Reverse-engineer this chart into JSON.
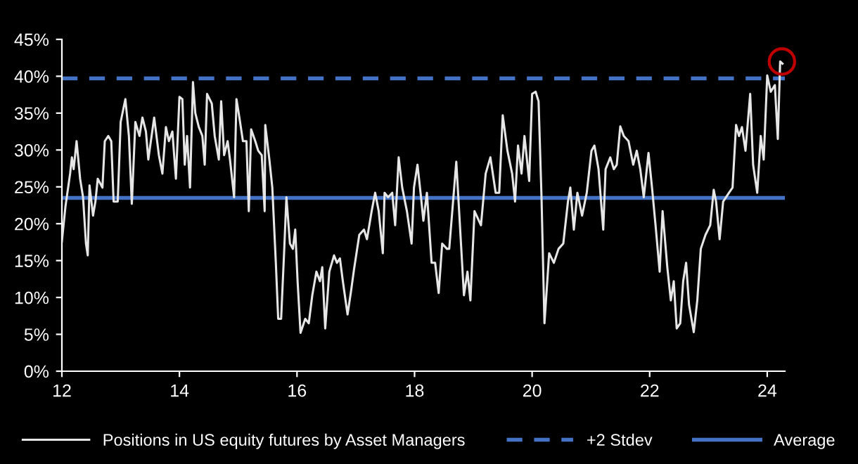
{
  "chart_data": {
    "type": "line",
    "series": [
      {
        "name": "Positions in US equity futures by Asset Managers",
        "color": "#e6e6e6",
        "x": [
          12.0,
          12.06,
          12.14,
          12.17,
          12.2,
          12.25,
          12.31,
          12.36,
          12.41,
          12.44,
          12.47,
          12.53,
          12.57,
          12.61,
          12.69,
          12.73,
          12.79,
          12.84,
          12.88,
          12.95,
          13.0,
          13.08,
          13.14,
          13.19,
          13.25,
          13.32,
          13.37,
          13.43,
          13.47,
          13.57,
          13.65,
          13.71,
          13.77,
          13.82,
          13.88,
          13.94,
          14.0,
          14.05,
          14.09,
          14.13,
          14.18,
          14.23,
          14.27,
          14.33,
          14.39,
          14.43,
          14.47,
          14.55,
          14.6,
          14.67,
          14.71,
          14.76,
          14.82,
          14.86,
          14.93,
          14.97,
          15.02,
          15.08,
          15.14,
          15.18,
          15.22,
          15.29,
          15.34,
          15.4,
          15.45,
          15.46,
          15.53,
          15.58,
          15.64,
          15.68,
          15.73,
          15.78,
          15.82,
          15.88,
          15.93,
          15.97,
          16.01,
          16.06,
          16.14,
          16.2,
          16.26,
          16.33,
          16.39,
          16.43,
          16.48,
          16.55,
          16.63,
          16.68,
          16.73,
          16.78,
          16.86,
          16.92,
          16.97,
          17.06,
          17.14,
          17.19,
          17.27,
          17.33,
          17.39,
          17.46,
          17.49,
          17.55,
          17.62,
          17.67,
          17.73,
          17.79,
          17.87,
          17.95,
          17.99,
          18.05,
          18.11,
          18.15,
          18.21,
          18.29,
          18.35,
          18.41,
          18.47,
          18.55,
          18.59,
          18.71,
          18.79,
          18.84,
          18.9,
          18.95,
          19.02,
          19.13,
          19.21,
          19.29,
          19.38,
          19.44,
          19.5,
          19.58,
          19.66,
          19.71,
          19.76,
          19.82,
          19.87,
          19.95,
          20.0,
          20.06,
          20.11,
          20.16,
          20.21,
          20.29,
          20.37,
          20.45,
          20.53,
          20.61,
          20.65,
          20.71,
          20.77,
          20.85,
          20.93,
          21.01,
          21.06,
          21.13,
          21.21,
          21.25,
          21.33,
          21.39,
          21.44,
          21.5,
          21.56,
          21.64,
          21.72,
          21.78,
          21.84,
          21.9,
          21.98,
          22.04,
          22.1,
          22.17,
          22.22,
          22.3,
          22.36,
          22.41,
          22.46,
          22.52,
          22.57,
          22.62,
          22.67,
          22.75,
          22.81,
          22.87,
          22.95,
          23.03,
          23.09,
          23.13,
          23.19,
          23.25,
          23.35,
          23.41,
          23.47,
          23.52,
          23.57,
          23.63,
          23.71,
          23.76,
          23.83,
          23.89,
          23.94,
          24.0,
          24.06,
          24.13,
          24.18,
          24.22,
          24.26
        ],
        "values": [
          17.6,
          22.3,
          26.8,
          29,
          27.4,
          31.2,
          26.1,
          23.6,
          17.3,
          15.7,
          25.2,
          21.1,
          23,
          26.1,
          24.9,
          31.2,
          31.9,
          31.2,
          23,
          23,
          33.8,
          36.9,
          31.9,
          22.7,
          33.8,
          31.9,
          34.4,
          32.5,
          28.7,
          34.4,
          29.3,
          26.8,
          33.1,
          31.2,
          32.5,
          26.1,
          37.2,
          36.9,
          28,
          31.9,
          24.9,
          39.2,
          35,
          33.1,
          31.9,
          28,
          37.6,
          36.3,
          31.9,
          28.7,
          36.6,
          29.3,
          31.2,
          28.7,
          23.6,
          36.9,
          34.4,
          31.2,
          31.2,
          21.7,
          32.8,
          31.2,
          29.9,
          29.3,
          21.7,
          33.4,
          28.7,
          24.9,
          14.7,
          7.1,
          7.1,
          16,
          23.6,
          17.3,
          16.6,
          19.2,
          12.2,
          5.2,
          7.1,
          6.5,
          10.3,
          13.5,
          12.2,
          14.1,
          5.8,
          13.5,
          15.7,
          14.7,
          15.3,
          12.2,
          7.7,
          10.9,
          13.8,
          18.5,
          19.2,
          17.9,
          21.7,
          24.2,
          21.7,
          16,
          24.2,
          23.6,
          24.2,
          19.8,
          29,
          24.9,
          21.7,
          17.3,
          24.9,
          28,
          23.6,
          20.4,
          24.2,
          14.7,
          14.7,
          10.6,
          17.3,
          16.6,
          16.6,
          28.4,
          17.3,
          10.3,
          13.5,
          9.6,
          21.7,
          19.8,
          26.8,
          29,
          24.2,
          24.2,
          34.7,
          29.9,
          26.8,
          23,
          30.6,
          26.8,
          31.9,
          25.8,
          37.6,
          37.9,
          36.6,
          23.6,
          6.5,
          16,
          14.7,
          16.6,
          17.3,
          23,
          24.9,
          19.2,
          24.2,
          21.1,
          24.2,
          29.9,
          30.6,
          27.4,
          19.2,
          27.4,
          29,
          27.4,
          28,
          33.2,
          31.9,
          31.2,
          28,
          29.9,
          27.4,
          23.6,
          29.6,
          24.9,
          19.8,
          13.5,
          21.7,
          14.1,
          9.6,
          12.2,
          5.8,
          6.5,
          12.2,
          14.7,
          9,
          5.3,
          9.6,
          16.6,
          18.5,
          19.8,
          24.6,
          23,
          17.9,
          23,
          24.2,
          24.9,
          33.4,
          31.9,
          33.1,
          29.9,
          37.6,
          28,
          24.2,
          31.9,
          28.7,
          40.1,
          37.9,
          38.8,
          31.5,
          42,
          41.7
        ]
      },
      {
        "type": "scatter",
        "color": "#c00000",
        "marker": "circle",
        "x": [
          24.25
        ],
        "values": [
          42
        ]
      }
    ],
    "ref_lines": [
      {
        "axis": "y",
        "value": 39.7,
        "label": "+2 Stdev",
        "color": "#4472c4",
        "line_style": "dashed"
      },
      {
        "axis": "y",
        "value": 23.5,
        "label": "Average",
        "color": "#4472c4",
        "line_style": "solid"
      }
    ],
    "xlim": [
      12,
      24.3
    ],
    "xticks": [
      12,
      14,
      16,
      18,
      20,
      22,
      24
    ],
    "ylim": [
      0,
      45
    ],
    "yticks": [
      {
        "value": 0,
        "label": "0%"
      },
      {
        "value": 5,
        "label": "5%"
      },
      {
        "value": 10,
        "label": "10%"
      },
      {
        "value": 15,
        "label": "15%"
      },
      {
        "value": 20,
        "label": "20%"
      },
      {
        "value": 25,
        "label": "25%"
      },
      {
        "value": 30,
        "label": "30%"
      },
      {
        "value": 35,
        "label": "35%"
      },
      {
        "value": 40,
        "label": "40%"
      },
      {
        "value": 45,
        "label": "45%"
      }
    ],
    "grid": false,
    "legend": "bottom"
  }
}
